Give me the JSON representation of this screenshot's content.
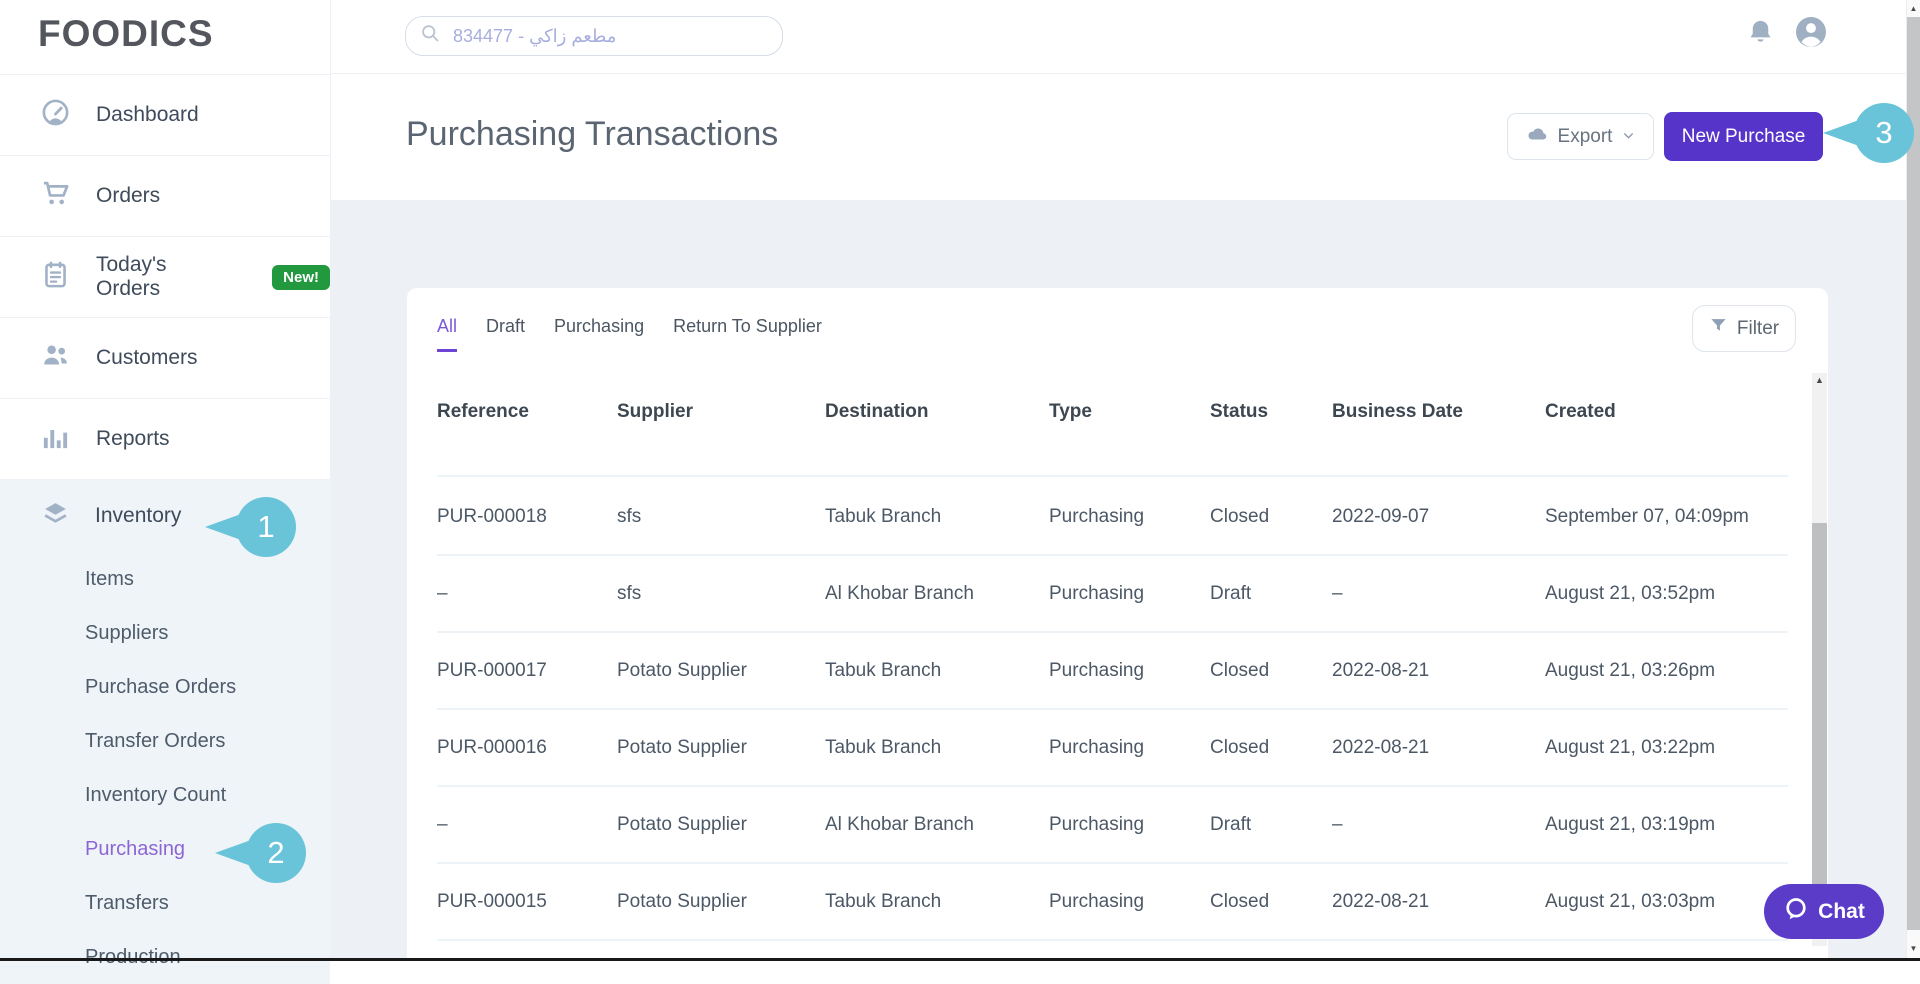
{
  "brand": {
    "logo_text": "FOODICS"
  },
  "topbar": {
    "search": {
      "placeholder": "834477 - مطعم زاكي",
      "icon": "search-icon"
    },
    "icons": [
      "notification-bell-icon",
      "user-avatar-icon"
    ]
  },
  "sidebar": {
    "items": [
      {
        "label": "Dashboard",
        "icon": "dashboard-gauge-icon"
      },
      {
        "label": "Orders",
        "icon": "cart-icon"
      },
      {
        "label": "Today's Orders",
        "icon": "clipboard-icon",
        "badge": "New!"
      },
      {
        "label": "Customers",
        "icon": "customers-icon"
      },
      {
        "label": "Reports",
        "icon": "bar-chart-icon"
      }
    ],
    "inventory": {
      "label": "Inventory",
      "icon": "layers-icon",
      "sub_items": [
        {
          "label": "Items"
        },
        {
          "label": "Suppliers"
        },
        {
          "label": "Purchase Orders"
        },
        {
          "label": "Transfer Orders"
        },
        {
          "label": "Inventory Count"
        },
        {
          "label": "Purchasing",
          "active": true
        },
        {
          "label": "Transfers"
        },
        {
          "label": "Production"
        }
      ]
    }
  },
  "header": {
    "title": "Purchasing Transactions",
    "export_label": "Export",
    "export_icon": "cloud-icon",
    "new_purchase_label": "New Purchase"
  },
  "tabs": [
    {
      "label": "All",
      "active": true
    },
    {
      "label": "Draft"
    },
    {
      "label": "Purchasing"
    },
    {
      "label": "Return To Supplier"
    }
  ],
  "filter": {
    "label": "Filter",
    "icon": "funnel-icon"
  },
  "table": {
    "columns": [
      "Reference",
      "Supplier",
      "Destination",
      "Type",
      "Status",
      "Business Date",
      "Created"
    ],
    "rows": [
      [
        "PUR-000018",
        "sfs",
        "Tabuk Branch",
        "Purchasing",
        "Closed",
        "2022-09-07",
        "September 07, 04:09pm"
      ],
      [
        "–",
        "sfs",
        "Al Khobar Branch",
        "Purchasing",
        "Draft",
        "–",
        "August 21, 03:52pm"
      ],
      [
        "PUR-000017",
        "Potato Supplier",
        "Tabuk Branch",
        "Purchasing",
        "Closed",
        "2022-08-21",
        "August 21, 03:26pm"
      ],
      [
        "PUR-000016",
        "Potato Supplier",
        "Tabuk Branch",
        "Purchasing",
        "Closed",
        "2022-08-21",
        "August 21, 03:22pm"
      ],
      [
        "–",
        "Potato Supplier",
        "Al Khobar Branch",
        "Purchasing",
        "Draft",
        "–",
        "August 21, 03:19pm"
      ],
      [
        "PUR-000015",
        "Potato Supplier",
        "Tabuk Branch",
        "Purchasing",
        "Closed",
        "2022-08-21",
        "August 21, 03:03pm"
      ]
    ]
  },
  "callouts": [
    {
      "number": "1"
    },
    {
      "number": "2"
    },
    {
      "number": "3"
    }
  ],
  "chat": {
    "label": "Chat",
    "icon": "chat-bubble-icon"
  },
  "colors": {
    "accent_purple": "#5634ca",
    "tab_active_purple": "#7d58d8",
    "sidebar_active_purple": "#8d66d4",
    "callout_teal": "#69c4d9",
    "badge_green": "#22993f",
    "chat_purple": "#5b3cc8"
  }
}
